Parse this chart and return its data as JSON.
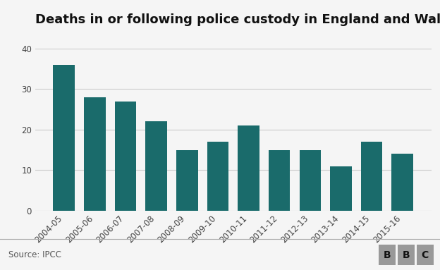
{
  "title": "Deaths in or following police custody in England and Wales",
  "categories": [
    "2004-05",
    "2005-06",
    "2006-07",
    "2007-08",
    "2008-09",
    "2009-10",
    "2010-11",
    "2011-12",
    "2012-13",
    "2013-14",
    "2013-14",
    "2014-15",
    "2015-16"
  ],
  "categories_clean": [
    "2004-05",
    "2005-06",
    "2006-07",
    "2007-08",
    "2008-09",
    "2009-10",
    "2010-11",
    "2011-12",
    "2012-13",
    "2013-14",
    "2014-15",
    "2015-16"
  ],
  "values": [
    36,
    28,
    27,
    22,
    15,
    17,
    21,
    15,
    15,
    11,
    17,
    14
  ],
  "bar_color": "#1a6b6b",
  "background_color": "#f5f5f5",
  "plot_bg_color": "#f5f5f5",
  "ylim": [
    0,
    40
  ],
  "yticks": [
    0,
    10,
    20,
    30,
    40
  ],
  "source_text": "Source: IPCC",
  "bbc_letters": [
    "B",
    "B",
    "C"
  ],
  "title_fontsize": 13,
  "tick_fontsize": 8.5,
  "source_fontsize": 8.5,
  "bbc_fontsize": 10
}
